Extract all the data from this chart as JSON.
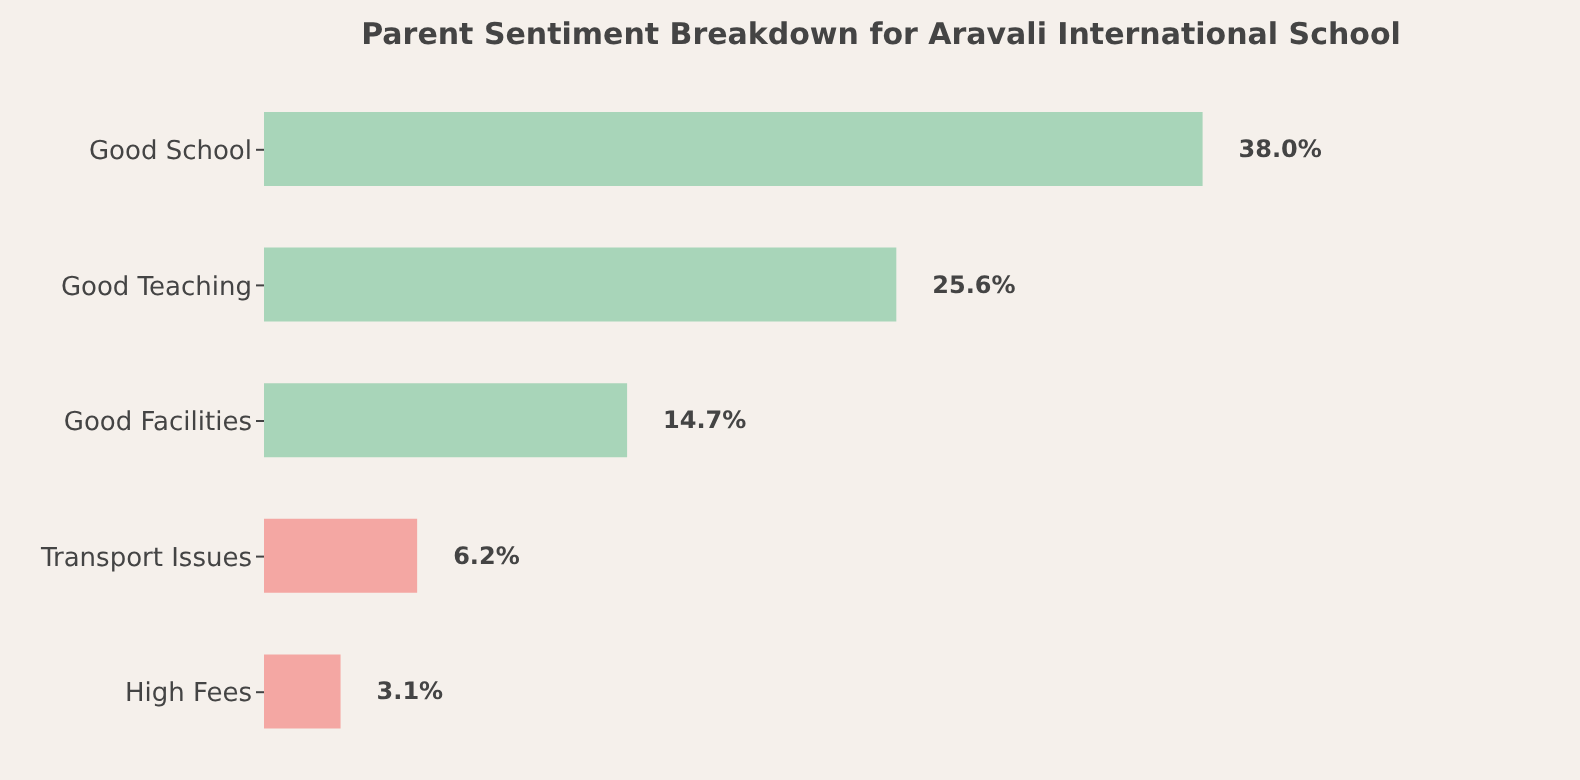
{
  "chart_data": {
    "type": "bar",
    "orientation": "horizontal",
    "title": "Parent Sentiment Breakdown for Aravali International School",
    "categories": [
      "Good School",
      "Good Teaching",
      "Good Facilities",
      "Transport Issues",
      "High Fees"
    ],
    "values": [
      38.0,
      25.6,
      14.7,
      6.2,
      3.1
    ],
    "colors": [
      "#a8d5b9",
      "#a8d5b9",
      "#a8d5b9",
      "#f4a7a3",
      "#f4a7a3"
    ],
    "value_labels": [
      "38.0%",
      "25.6%",
      "14.7%",
      "6.2%",
      "3.1%"
    ],
    "tick_labels": "y"
  }
}
